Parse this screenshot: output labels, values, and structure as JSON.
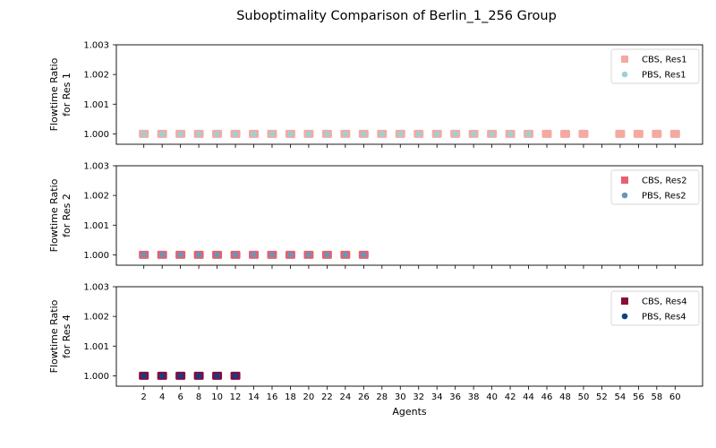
{
  "figure": {
    "title": "Suboptimality Comparison of Berlin_1_256 Group"
  },
  "chart_data": [
    {
      "type": "scatter",
      "ylabel_line1": "Flowtime Ratio",
      "ylabel_line2": "for Res 1",
      "xlabel": "",
      "ylim": [
        0.99965,
        1.003
      ],
      "yticks": [
        "1.000",
        "1.001",
        "1.002",
        "1.003"
      ],
      "ytick_values": [
        1.0,
        1.001,
        1.002,
        1.003
      ],
      "legend": "top-right",
      "series": [
        {
          "name": "CBS, Res1",
          "marker": "square",
          "color": "#f4aaa0",
          "x": [
            2,
            4,
            6,
            8,
            10,
            12,
            14,
            16,
            18,
            20,
            22,
            24,
            26,
            28,
            30,
            32,
            34,
            36,
            38,
            40,
            42,
            44,
            46,
            48,
            50,
            54,
            56,
            58,
            60
          ],
          "y": [
            1,
            1,
            1,
            1,
            1,
            1,
            1,
            1,
            1,
            1,
            1,
            1,
            1,
            1,
            1,
            1,
            1,
            1,
            1,
            1,
            1,
            1,
            1,
            1,
            1,
            1,
            1,
            1,
            1
          ]
        },
        {
          "name": "PBS, Res1",
          "marker": "circle",
          "color": "#9ecfd6",
          "x": [
            2,
            4,
            6,
            8,
            10,
            12,
            14,
            16,
            18,
            20,
            22,
            24,
            26,
            28,
            30,
            32,
            34,
            36,
            38,
            40,
            42,
            44
          ],
          "y": [
            1,
            1,
            1,
            1,
            1,
            1,
            1,
            1,
            1,
            1,
            1,
            1,
            1,
            1,
            1,
            1,
            1,
            1,
            1,
            1,
            1,
            1
          ]
        }
      ]
    },
    {
      "type": "scatter",
      "ylabel_line1": "Flowtime Ratio",
      "ylabel_line2": "for Res 2",
      "xlabel": "",
      "ylim": [
        0.99965,
        1.003
      ],
      "yticks": [
        "1.000",
        "1.001",
        "1.002",
        "1.003"
      ],
      "ytick_values": [
        1.0,
        1.001,
        1.002,
        1.003
      ],
      "legend": "top-right",
      "series": [
        {
          "name": "CBS, Res2",
          "marker": "square",
          "color": "#e8606f",
          "x": [
            2,
            4,
            6,
            8,
            10,
            12,
            14,
            16,
            18,
            20,
            22,
            24,
            26
          ],
          "y": [
            1,
            1,
            1,
            1,
            1,
            1,
            1,
            1,
            1,
            1,
            1,
            1,
            1
          ]
        },
        {
          "name": "PBS, Res2",
          "marker": "circle",
          "color": "#6a95b8",
          "x": [
            2,
            4,
            6,
            8,
            10,
            12,
            14,
            16,
            18,
            20,
            22,
            24,
            26
          ],
          "y": [
            1,
            1,
            1,
            1,
            1,
            1,
            1,
            1,
            1,
            1,
            1,
            1,
            1
          ]
        }
      ]
    },
    {
      "type": "scatter",
      "ylabel_line1": "Flowtime Ratio",
      "ylabel_line2": "for Res 4",
      "xlabel": "Agents",
      "ylim": [
        0.99965,
        1.003
      ],
      "yticks": [
        "1.000",
        "1.001",
        "1.002",
        "1.003"
      ],
      "ytick_values": [
        1.0,
        1.001,
        1.002,
        1.003
      ],
      "legend": "top-right",
      "series": [
        {
          "name": "CBS, Res4",
          "marker": "square",
          "color": "#8b0a3c",
          "x": [
            2,
            4,
            6,
            8,
            10,
            12
          ],
          "y": [
            1,
            1,
            1,
            1,
            1,
            1
          ]
        },
        {
          "name": "PBS, Res4",
          "marker": "circle",
          "color": "#123f82",
          "x": [
            2,
            4,
            6,
            8,
            10,
            12
          ],
          "y": [
            1,
            1,
            1,
            1,
            1,
            1
          ]
        }
      ]
    }
  ],
  "x_axis": {
    "ticks": [
      2,
      4,
      6,
      8,
      10,
      12,
      14,
      16,
      18,
      20,
      22,
      24,
      26,
      28,
      30,
      32,
      34,
      36,
      38,
      40,
      42,
      44,
      46,
      48,
      50,
      52,
      54,
      56,
      58,
      60
    ],
    "xlim": [
      -1,
      63
    ]
  }
}
